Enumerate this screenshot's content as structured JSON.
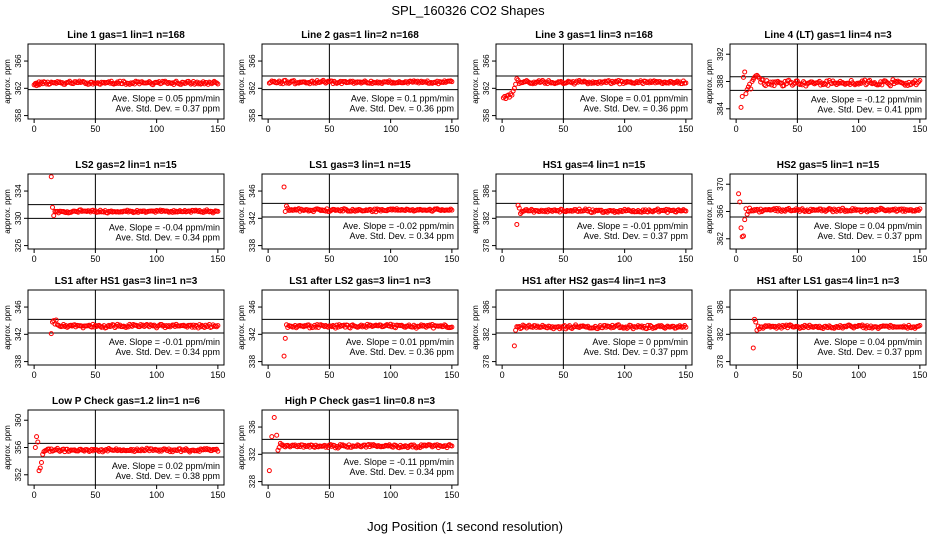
{
  "title": "SPL_160326  CO2 Shapes",
  "xlabel": "Jog Position (1 second resolution)",
  "colors": {
    "points": "#ff0000",
    "frame": "#000000"
  },
  "chart_data": [
    {
      "type": "scatter",
      "title": "Line 1 gas=1 lin=1 n=168",
      "ylabel": "approx. ppm",
      "ylim": [
        357.5,
        368.5
      ],
      "yticks": [
        358,
        362,
        366
      ],
      "xlim": [
        -5,
        155
      ],
      "xticks": [
        0,
        50,
        100,
        150
      ],
      "hlines": [
        361.8,
        363.8
      ],
      "vline": 50,
      "slope_text": "Ave. Slope =  0.05  ppm/min",
      "std_text": "Ave. Std. Dev. =  0.37  ppm",
      "base": 362.8,
      "amp": 0.3,
      "start": 1,
      "outliers": [
        [
          0,
          362.5
        ],
        [
          1,
          362.6
        ],
        [
          2,
          362.4
        ],
        [
          3,
          362.6
        ],
        [
          4,
          362.5
        ]
      ]
    },
    {
      "type": "scatter",
      "title": "Line 2 gas=1 lin=2 n=168",
      "ylabel": "approx. ppm",
      "ylim": [
        357.5,
        368.5
      ],
      "yticks": [
        358,
        362,
        366
      ],
      "xlim": [
        -5,
        155
      ],
      "xticks": [
        0,
        50,
        100,
        150
      ],
      "hlines": [
        361.8,
        363.8
      ],
      "vline": 50,
      "slope_text": "Ave. Slope =  0.1  ppm/min",
      "std_text": "Ave. Std. Dev. =  0.36  ppm",
      "base": 362.9,
      "amp": 0.3,
      "start": 1,
      "outliers": []
    },
    {
      "type": "scatter",
      "title": "Line 3 gas=1 lin=3 n=168",
      "ylabel": "approx. ppm",
      "ylim": [
        357.5,
        368.5
      ],
      "yticks": [
        358,
        362,
        366
      ],
      "xlim": [
        -5,
        155
      ],
      "xticks": [
        0,
        50,
        100,
        150
      ],
      "hlines": [
        361.8,
        363.8
      ],
      "vline": 50,
      "slope_text": "Ave. Slope =  0.01  ppm/min",
      "std_text": "Ave. Std. Dev. =  0.36  ppm",
      "base": 362.9,
      "amp": 0.3,
      "start": 14,
      "outliers": [
        [
          1,
          360.6
        ],
        [
          2,
          360.8
        ],
        [
          3,
          360.5
        ],
        [
          4,
          360.9
        ],
        [
          5,
          361.0
        ],
        [
          6,
          360.7
        ],
        [
          7,
          361.2
        ],
        [
          8,
          361.0
        ],
        [
          9,
          361.6
        ],
        [
          10,
          362.0
        ],
        [
          11,
          362.6
        ],
        [
          12,
          363.4
        ],
        [
          13,
          363.2
        ]
      ]
    },
    {
      "type": "scatter",
      "title": "Line 4 (LT) gas=1 lin=4 n=3",
      "ylabel": "approx. ppm",
      "ylim": [
        382.5,
        393.5
      ],
      "yticks": [
        384,
        388,
        392
      ],
      "xlim": [
        -5,
        155
      ],
      "xticks": [
        0,
        50,
        100,
        150
      ],
      "hlines": [
        386.7,
        388.7
      ],
      "vline": 50,
      "slope_text": "Ave. Slope =  -0.12  ppm/min",
      "std_text": "Ave. Std. Dev. =  0.41  ppm",
      "base": 387.8,
      "amp": 0.5,
      "start": 20,
      "outliers": [
        [
          4,
          384.2
        ],
        [
          5,
          385.8
        ],
        [
          6,
          388.6
        ],
        [
          7,
          389.4
        ],
        [
          8,
          386.2
        ],
        [
          9,
          386.8
        ],
        [
          10,
          387.2
        ],
        [
          11,
          387.6
        ],
        [
          12,
          386.9
        ],
        [
          13,
          388.0
        ],
        [
          14,
          388.3
        ],
        [
          15,
          388.6
        ],
        [
          16,
          388.8
        ],
        [
          17,
          388.9
        ],
        [
          18,
          388.7
        ],
        [
          19,
          388.5
        ]
      ]
    },
    {
      "type": "scatter",
      "title": "LS2 gas=2 lin=1 n=15",
      "ylabel": "approx. ppm",
      "ylim": [
        325.5,
        336.5
      ],
      "yticks": [
        326,
        330,
        334
      ],
      "xlim": [
        -5,
        155
      ],
      "xticks": [
        0,
        50,
        100,
        150
      ],
      "hlines": [
        330.0,
        332.0
      ],
      "vline": 50,
      "slope_text": "Ave. Slope =  -0.04  ppm/min",
      "std_text": "Ave. Std. Dev. =  0.34  ppm",
      "base": 331.0,
      "amp": 0.25,
      "start": 17,
      "outliers": [
        [
          14,
          336.1
        ],
        [
          15,
          331.6
        ],
        [
          16,
          330.4
        ]
      ]
    },
    {
      "type": "scatter",
      "title": "LS1 gas=3 lin=1 n=15",
      "ylabel": "approx. ppm",
      "ylim": [
        337.5,
        348.5
      ],
      "yticks": [
        338,
        342,
        346
      ],
      "xlim": [
        -5,
        155
      ],
      "xticks": [
        0,
        50,
        100,
        150
      ],
      "hlines": [
        342.2,
        344.2
      ],
      "vline": 50,
      "slope_text": "Ave. Slope =  -0.02  ppm/min",
      "std_text": "Ave. Std. Dev. =  0.34  ppm",
      "base": 343.2,
      "amp": 0.25,
      "start": 17,
      "outliers": [
        [
          13,
          346.6
        ],
        [
          14,
          343.0
        ],
        [
          15,
          343.8
        ],
        [
          16,
          343.5
        ]
      ]
    },
    {
      "type": "scatter",
      "title": "HS1 gas=4 lin=1 n=15",
      "ylabel": "approx. ppm",
      "ylim": [
        377.5,
        388.5
      ],
      "yticks": [
        378,
        382,
        386
      ],
      "xlim": [
        -5,
        155
      ],
      "xticks": [
        0,
        50,
        100,
        150
      ],
      "hlines": [
        382.2,
        384.2
      ],
      "vline": 50,
      "slope_text": "Ave. Slope =  -0.01  ppm/min",
      "std_text": "Ave. Std. Dev. =  0.37  ppm",
      "base": 383.1,
      "amp": 0.3,
      "start": 17,
      "outliers": [
        [
          12,
          381.1
        ],
        [
          13,
          383.9
        ],
        [
          14,
          383.5
        ],
        [
          15,
          382.7
        ],
        [
          16,
          382.9
        ]
      ]
    },
    {
      "type": "scatter",
      "title": "HS2 gas=5 lin=1 n=15",
      "ylabel": "approx. ppm",
      "ylim": [
        360.5,
        371.5
      ],
      "yticks": [
        362,
        366,
        370
      ],
      "xlim": [
        -5,
        155
      ],
      "xticks": [
        0,
        50,
        100,
        150
      ],
      "hlines": [
        365.2,
        367.2
      ],
      "vline": 50,
      "slope_text": "Ave. Slope =  0.04  ppm/min",
      "std_text": "Ave. Std. Dev. =  0.37  ppm",
      "base": 366.2,
      "amp": 0.3,
      "start": 12,
      "outliers": [
        [
          2,
          368.6
        ],
        [
          3,
          367.4
        ],
        [
          4,
          363.6
        ],
        [
          5,
          362.3
        ],
        [
          6,
          362.4
        ],
        [
          7,
          364.8
        ],
        [
          8,
          366.4
        ],
        [
          9,
          365.6
        ],
        [
          10,
          366.0
        ],
        [
          11,
          366.5
        ]
      ]
    },
    {
      "type": "scatter",
      "title": "LS1 after HS1 gas=3 lin=1 n=3",
      "ylabel": "approx. ppm",
      "ylim": [
        337.5,
        348.5
      ],
      "yticks": [
        338,
        342,
        346
      ],
      "xlim": [
        -5,
        155
      ],
      "xticks": [
        0,
        50,
        100,
        150
      ],
      "hlines": [
        342.2,
        344.2
      ],
      "vline": 50,
      "slope_text": "Ave. Slope =  -0.01  ppm/min",
      "std_text": "Ave. Std. Dev. =  0.34  ppm",
      "base": 343.2,
      "amp": 0.3,
      "start": 20,
      "outliers": [
        [
          14,
          342.1
        ],
        [
          15,
          343.8
        ],
        [
          16,
          344.0
        ],
        [
          17,
          343.5
        ],
        [
          18,
          344.1
        ],
        [
          19,
          343.4
        ]
      ]
    },
    {
      "type": "scatter",
      "title": "LS1 after LS2 gas=3 lin=1 n=3",
      "ylabel": "approx. ppm",
      "ylim": [
        337.5,
        348.5
      ],
      "yticks": [
        338,
        342,
        346
      ],
      "xlim": [
        -5,
        155
      ],
      "xticks": [
        0,
        50,
        100,
        150
      ],
      "hlines": [
        342.2,
        344.2
      ],
      "vline": 50,
      "slope_text": "Ave. Slope =  0.01  ppm/min",
      "std_text": "Ave. Std. Dev. =  0.36  ppm",
      "base": 343.2,
      "amp": 0.35,
      "start": 17,
      "outliers": [
        [
          13,
          338.8
        ],
        [
          14,
          341.4
        ],
        [
          15,
          343.4
        ],
        [
          16,
          343.0
        ]
      ]
    },
    {
      "type": "scatter",
      "title": "HS1 after HS2 gas=4 lin=1 n=3",
      "ylabel": "approx. ppm",
      "ylim": [
        377.5,
        388.5
      ],
      "yticks": [
        378,
        382,
        386
      ],
      "xlim": [
        -5,
        155
      ],
      "xticks": [
        0,
        50,
        100,
        150
      ],
      "hlines": [
        382.2,
        384.2
      ],
      "vline": 50,
      "slope_text": "Ave. Slope =  0",
      "std_text": "Ave. Std. Dev. =  0.37  ppm",
      "slope_unit": "ppm/min",
      "base": 383.1,
      "amp": 0.35,
      "start": 12,
      "outliers": [
        [
          10,
          380.3
        ],
        [
          11,
          382.6
        ]
      ]
    },
    {
      "type": "scatter",
      "title": "HS1 after LS1 gas=4 lin=1 n=3",
      "ylabel": "approx. ppm",
      "ylim": [
        377.5,
        388.5
      ],
      "yticks": [
        378,
        382,
        386
      ],
      "xlim": [
        -5,
        155
      ],
      "xticks": [
        0,
        50,
        100,
        150
      ],
      "hlines": [
        382.2,
        384.2
      ],
      "vline": 50,
      "slope_text": "Ave. Slope =  0.04  ppm/min",
      "std_text": "Ave. Std. Dev. =  0.37  ppm",
      "base": 383.1,
      "amp": 0.3,
      "start": 20,
      "outliers": [
        [
          14,
          380.0
        ],
        [
          15,
          384.2
        ],
        [
          16,
          383.8
        ],
        [
          17,
          382.6
        ],
        [
          18,
          383.2
        ],
        [
          19,
          382.8
        ]
      ]
    },
    {
      "type": "scatter",
      "title": "Low P Check gas=1.2 lin=1 n=6",
      "ylabel": "approx. ppm",
      "ylim": [
        350.5,
        361.5
      ],
      "yticks": [
        352,
        356,
        360
      ],
      "xlim": [
        -5,
        155
      ],
      "xticks": [
        0,
        50,
        100,
        150
      ],
      "hlines": [
        354.6,
        356.6
      ],
      "vline": 50,
      "slope_text": "Ave. Slope =  0.02  ppm/min",
      "std_text": "Ave. Std. Dev. =  0.38  ppm",
      "base": 355.6,
      "amp": 0.3,
      "start": 9,
      "outliers": [
        [
          1,
          356.0
        ],
        [
          2,
          357.6
        ],
        [
          3,
          356.8
        ],
        [
          4,
          352.6
        ],
        [
          5,
          353.0
        ],
        [
          6,
          353.8
        ],
        [
          7,
          355.0
        ],
        [
          8,
          355.4
        ]
      ]
    },
    {
      "type": "scatter",
      "title": "High P Check gas=1 lin=0.8 n=3",
      "ylabel": "approx. ppm",
      "ylim": [
        327.5,
        338.5
      ],
      "yticks": [
        328,
        332,
        336
      ],
      "xlim": [
        -5,
        155
      ],
      "xticks": [
        0,
        50,
        100,
        150
      ],
      "hlines": [
        332.2,
        334.2
      ],
      "vline": 50,
      "slope_text": "Ave. Slope =  -0.11  ppm/min",
      "std_text": "Ave. Std. Dev. =  0.34  ppm",
      "base": 333.2,
      "amp": 0.3,
      "start": 12,
      "outliers": [
        [
          1,
          329.6
        ],
        [
          3,
          334.6
        ],
        [
          5,
          337.4
        ],
        [
          7,
          334.8
        ],
        [
          8,
          332.6
        ],
        [
          9,
          333.0
        ],
        [
          10,
          333.6
        ],
        [
          11,
          333.4
        ]
      ]
    }
  ]
}
